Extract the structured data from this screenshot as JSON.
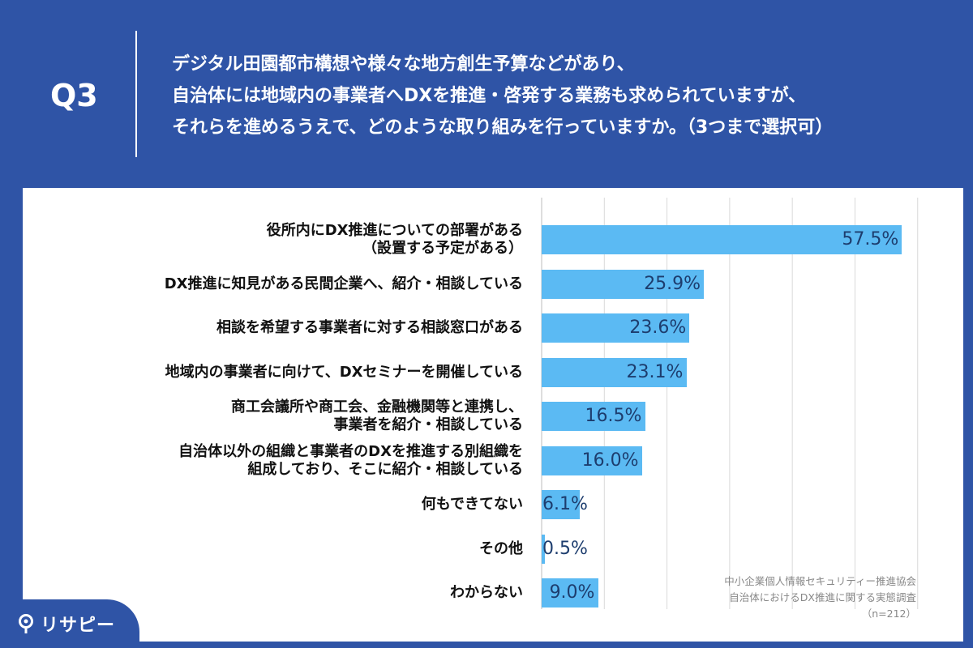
{
  "header": {
    "q_label": "Q3",
    "question_lines": [
      "デジタル田園都市構想や様々な地方創生予算などがあり、",
      "自治体には地域内の事業者へDXを推進・啓発する業務も求められていますが、",
      "それらを進めるうえで、どのような取り組みを行っていますか。（3つまで選択可）"
    ]
  },
  "source": {
    "org": "中小企業個人情報セキュリティー推進協会",
    "survey": "自治体におけるDX推進に関する実態調査",
    "n": "（n=212）"
  },
  "logo": {
    "text": "リサピー"
  },
  "colors": {
    "background": "#2f54a6",
    "bar": "#5bbaf3",
    "value_text": "#1d3d6e"
  },
  "chart_data": {
    "type": "bar",
    "orientation": "horizontal",
    "categories": [
      [
        "役所内にDX推進についての部署がある",
        "（設置する予定がある）"
      ],
      [
        "DX推進に知見がある民間企業へ、紹介・相談している"
      ],
      [
        "相談を希望する事業者に対する相談窓口がある"
      ],
      [
        "地域内の事業者に向けて、DXセミナーを開催している"
      ],
      [
        "商工会議所や商工会、金融機関等と連携し、",
        "事業者を紹介・相談している"
      ],
      [
        "自治体以外の組織と事業者のDXを推進する別組織を",
        "組成しており、そこに紹介・相談している"
      ],
      [
        "何もできてない"
      ],
      [
        "その他"
      ],
      [
        "わからない"
      ]
    ],
    "values": [
      57.5,
      25.9,
      23.6,
      23.1,
      16.5,
      16.0,
      6.1,
      0.5,
      9.0
    ],
    "value_labels": [
      "57.5%",
      "25.9%",
      "23.6%",
      "23.1%",
      "16.5%",
      "16.0%",
      "6.1%",
      "0.5%",
      "9.0%"
    ],
    "xlim": [
      0,
      66.5
    ],
    "grid": true,
    "grid_step": 10
  }
}
